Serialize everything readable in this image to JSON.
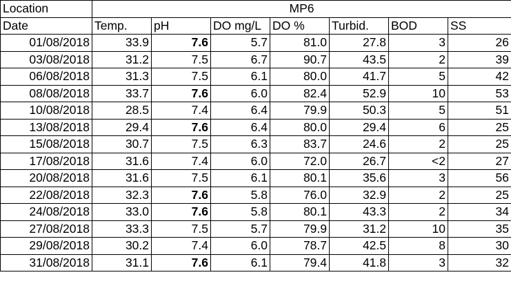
{
  "header": {
    "location_label": "Location",
    "location_value": "MP6"
  },
  "columns": [
    "Date",
    "Temp.",
    "pH",
    "DO mg/L",
    "DO %",
    "Turbid.",
    "BOD",
    "SS"
  ],
  "rows": [
    {
      "date": "01/08/2018",
      "temp": "33.9",
      "ph": "7.6",
      "ph_bold": true,
      "do_mgl": "5.7",
      "do_pct": "81.0",
      "turbid": "27.8",
      "bod": "3",
      "ss": "26"
    },
    {
      "date": "03/08/2018",
      "temp": "31.2",
      "ph": "7.5",
      "ph_bold": false,
      "do_mgl": "6.7",
      "do_pct": "90.7",
      "turbid": "43.5",
      "bod": "2",
      "ss": "39"
    },
    {
      "date": "06/08/2018",
      "temp": "31.3",
      "ph": "7.5",
      "ph_bold": false,
      "do_mgl": "6.1",
      "do_pct": "80.0",
      "turbid": "41.7",
      "bod": "5",
      "ss": "42"
    },
    {
      "date": "08/08/2018",
      "temp": "33.7",
      "ph": "7.6",
      "ph_bold": true,
      "do_mgl": "6.0",
      "do_pct": "82.4",
      "turbid": "52.9",
      "bod": "10",
      "ss": "53"
    },
    {
      "date": "10/08/2018",
      "temp": "28.5",
      "ph": "7.4",
      "ph_bold": false,
      "do_mgl": "6.4",
      "do_pct": "79.9",
      "turbid": "50.3",
      "bod": "5",
      "ss": "51"
    },
    {
      "date": "13/08/2018",
      "temp": "29.4",
      "ph": "7.6",
      "ph_bold": true,
      "do_mgl": "6.4",
      "do_pct": "80.0",
      "turbid": "29.4",
      "bod": "6",
      "ss": "25"
    },
    {
      "date": "15/08/2018",
      "temp": "30.7",
      "ph": "7.5",
      "ph_bold": false,
      "do_mgl": "6.3",
      "do_pct": "83.7",
      "turbid": "24.6",
      "bod": "2",
      "ss": "25"
    },
    {
      "date": "17/08/2018",
      "temp": "31.6",
      "ph": "7.4",
      "ph_bold": false,
      "do_mgl": "6.0",
      "do_pct": "72.0",
      "turbid": "26.7",
      "bod": "<2",
      "ss": "27"
    },
    {
      "date": "20/08/2018",
      "temp": "31.6",
      "ph": "7.5",
      "ph_bold": false,
      "do_mgl": "6.1",
      "do_pct": "80.1",
      "turbid": "35.6",
      "bod": "3",
      "ss": "56"
    },
    {
      "date": "22/08/2018",
      "temp": "32.3",
      "ph": "7.6",
      "ph_bold": true,
      "do_mgl": "5.8",
      "do_pct": "76.0",
      "turbid": "32.9",
      "bod": "2",
      "ss": "25"
    },
    {
      "date": "24/08/2018",
      "temp": "33.0",
      "ph": "7.6",
      "ph_bold": true,
      "do_mgl": "5.8",
      "do_pct": "80.1",
      "turbid": "43.3",
      "bod": "2",
      "ss": "34"
    },
    {
      "date": "27/08/2018",
      "temp": "33.3",
      "ph": "7.5",
      "ph_bold": false,
      "do_mgl": "5.7",
      "do_pct": "79.9",
      "turbid": "31.2",
      "bod": "10",
      "ss": "35"
    },
    {
      "date": "29/08/2018",
      "temp": "30.2",
      "ph": "7.4",
      "ph_bold": false,
      "do_mgl": "6.0",
      "do_pct": "78.7",
      "turbid": "42.5",
      "bod": "8",
      "ss": "30"
    },
    {
      "date": "31/08/2018",
      "temp": "31.1",
      "ph": "7.6",
      "ph_bold": true,
      "do_mgl": "6.1",
      "do_pct": "79.4",
      "turbid": "41.8",
      "bod": "3",
      "ss": "32"
    }
  ]
}
